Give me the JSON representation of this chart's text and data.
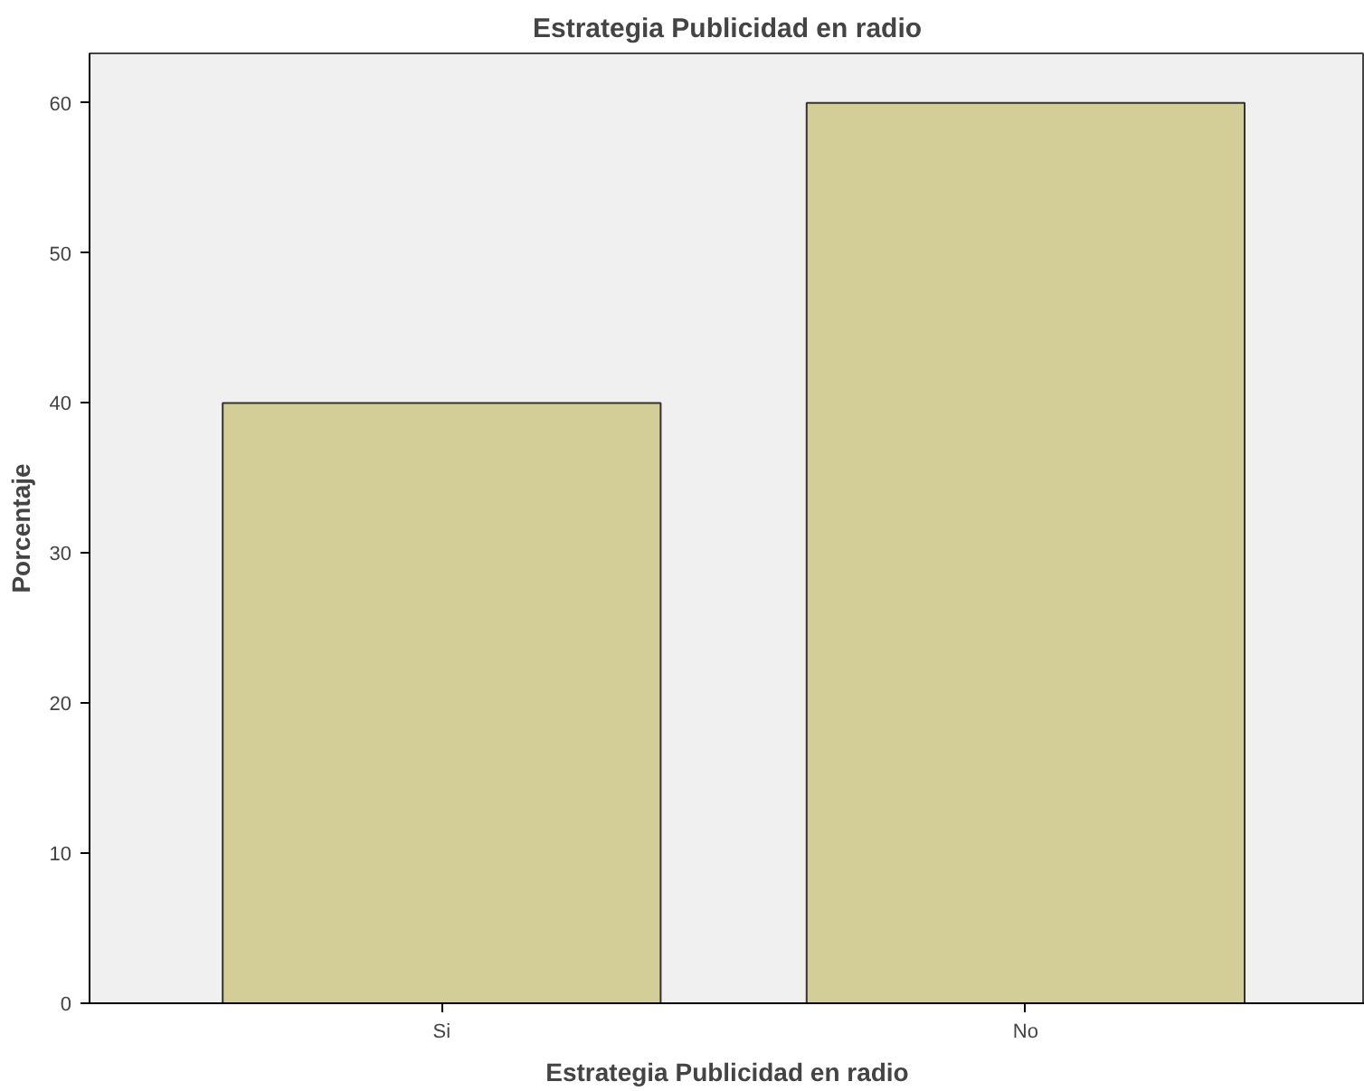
{
  "chart_data": {
    "type": "bar",
    "title": "Estrategia Publicidad en radio",
    "xlabel": "Estrategia Publicidad en radio",
    "ylabel": "Porcentaje",
    "categories": [
      "Si",
      "No"
    ],
    "values": [
      40,
      60
    ],
    "color": "#d3cd98",
    "ylim": [
      0,
      63.3
    ],
    "yticks": [
      0,
      10,
      20,
      30,
      40,
      50,
      60
    ],
    "grid": false
  }
}
